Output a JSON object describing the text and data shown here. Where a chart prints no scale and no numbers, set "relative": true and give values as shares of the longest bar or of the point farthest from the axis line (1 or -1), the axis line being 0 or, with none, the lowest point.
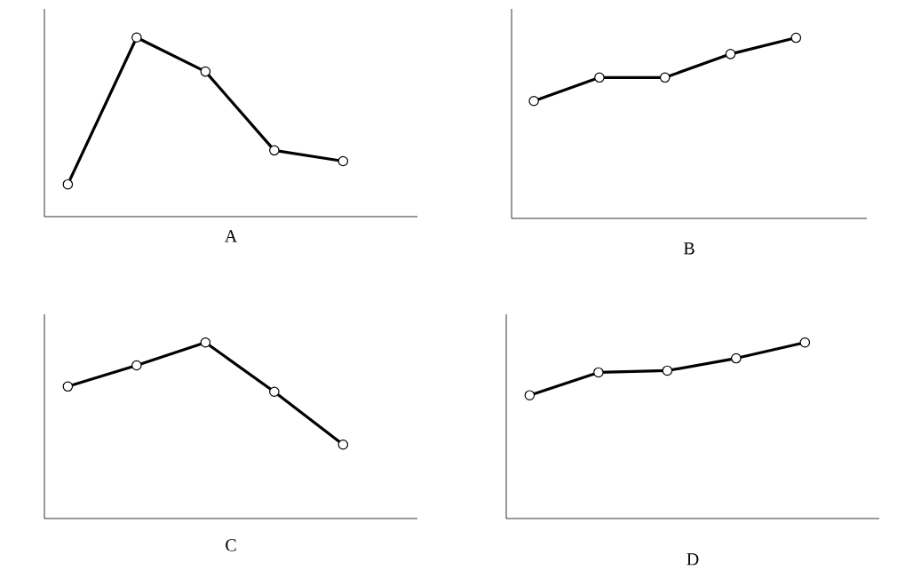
{
  "chart_data": [
    {
      "type": "line",
      "xlabel": "A",
      "categories": [
        null,
        null,
        null,
        null,
        null
      ],
      "values": [
        0.18,
        1,
        0.81,
        0.37,
        0.31
      ],
      "relative": true,
      "color": "#000000",
      "marker": "circle",
      "line_style": "solid"
    },
    {
      "type": "line",
      "xlabel": "B",
      "categories": [
        null,
        null,
        null,
        null,
        null
      ],
      "values": [
        0.65,
        0.78,
        0.78,
        0.91,
        1
      ],
      "relative": true,
      "color": "#000000",
      "marker": "circle",
      "line_style": "solid"
    },
    {
      "type": "line",
      "xlabel": "C",
      "categories": [
        null,
        null,
        null,
        null,
        null
      ],
      "values": [
        0.75,
        0.87,
        1,
        0.72,
        0.42
      ],
      "relative": true,
      "color": "#000000",
      "marker": "circle",
      "line_style": "solid"
    },
    {
      "type": "line",
      "xlabel": "D",
      "categories": [
        null,
        null,
        null,
        null,
        null
      ],
      "values": [
        0.7,
        0.83,
        0.84,
        0.91,
        1
      ],
      "relative": true,
      "color": "#000000",
      "marker": "circle",
      "line_style": "solid"
    }
  ]
}
